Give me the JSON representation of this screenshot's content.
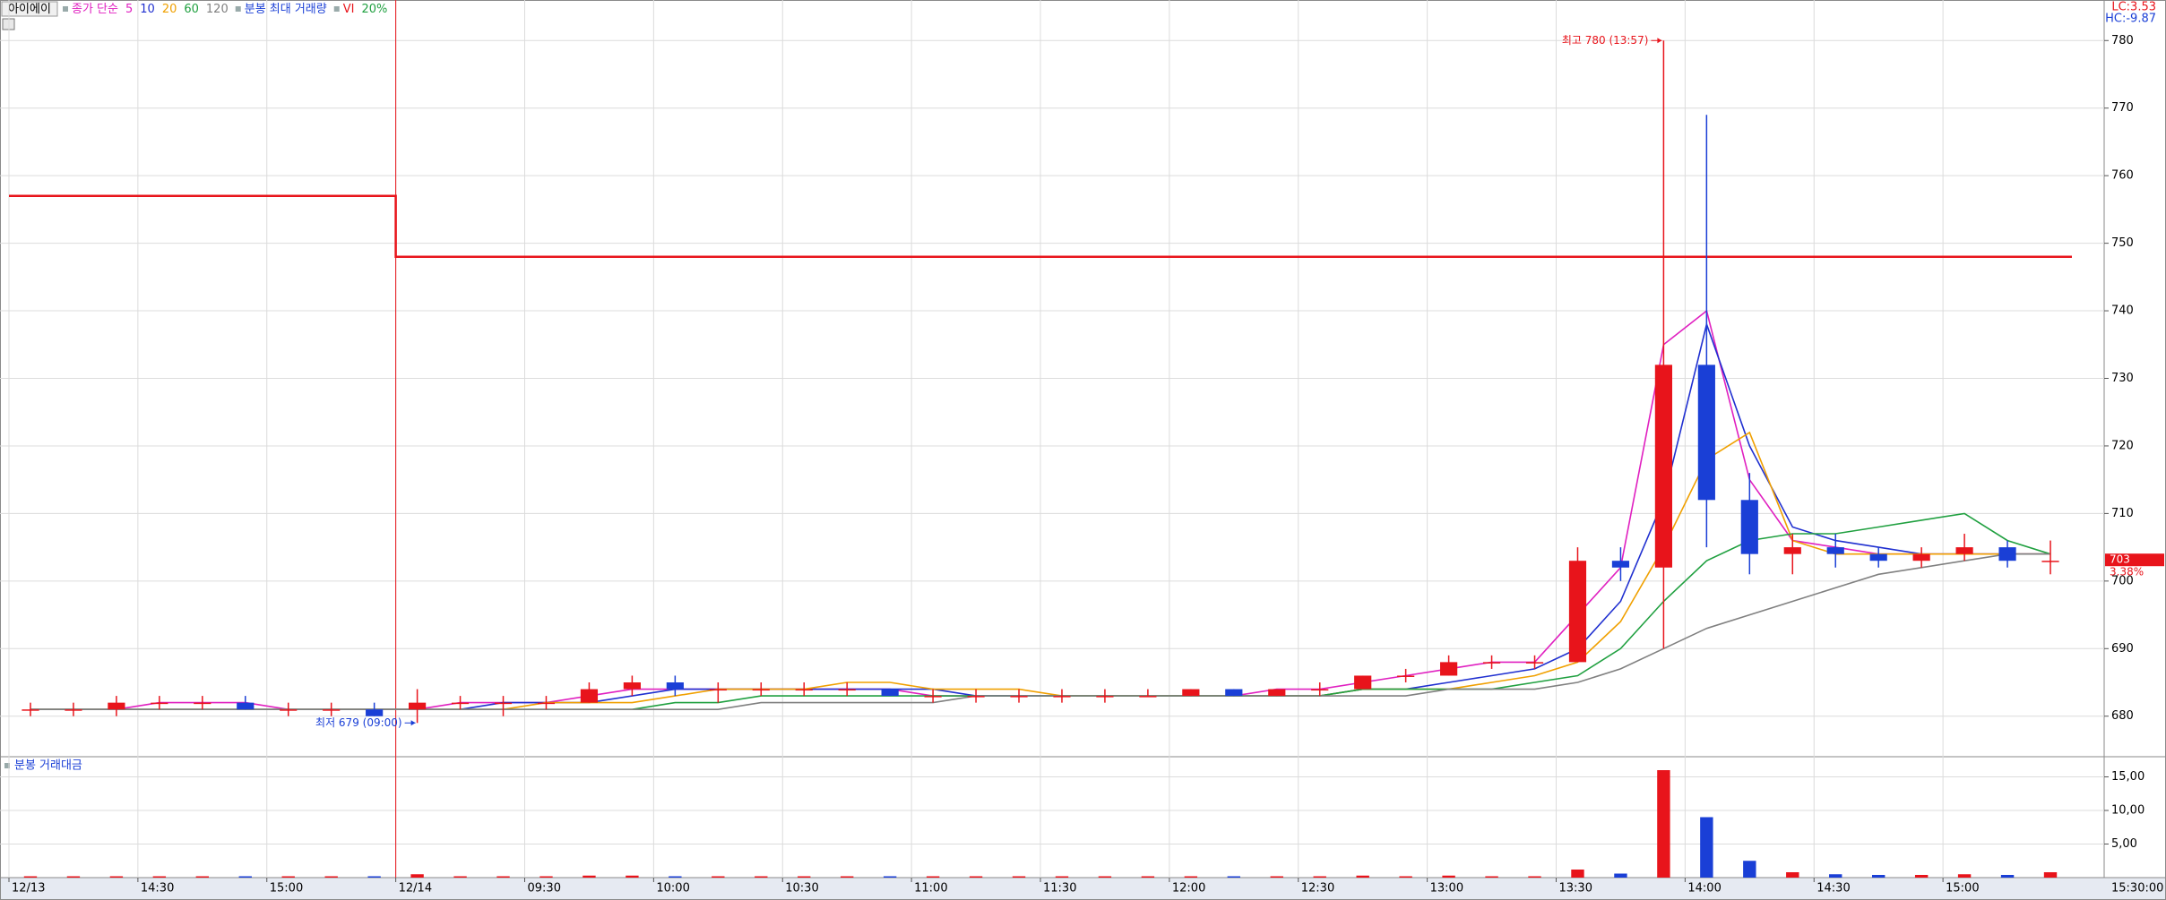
{
  "chart_data": [
    {
      "type": "candlestick",
      "name": "아이에이",
      "ma_label": "종가 단순",
      "volume_label": "분봉 최대 거래량",
      "vi_note": "20%",
      "x": [
        "12/13 14:00",
        "12/13 14:10",
        "12/13 14:20",
        "12/13 14:30",
        "12/13 14:40",
        "12/13 14:50",
        "12/13 15:00",
        "12/13 15:10",
        "12/13 15:20",
        "12/14 09:00",
        "12/14 09:10",
        "12/14 09:20",
        "12/14 09:30",
        "12/14 09:40",
        "12/14 09:50",
        "12/14 10:00",
        "12/14 10:10",
        "12/14 10:20",
        "12/14 10:30",
        "12/14 10:40",
        "12/14 10:50",
        "12/14 11:00",
        "12/14 11:10",
        "12/14 11:20",
        "12/14 11:30",
        "12/14 11:40",
        "12/14 11:50",
        "12/14 12:00",
        "12/14 12:10",
        "12/14 12:20",
        "12/14 12:30",
        "12/14 12:40",
        "12/14 12:50",
        "12/14 13:00",
        "12/14 13:10",
        "12/14 13:20",
        "12/14 13:30",
        "12/14 13:40",
        "12/14 13:50",
        "12/14 14:00",
        "12/14 14:10",
        "12/14 14:20",
        "12/14 14:30",
        "12/14 14:40",
        "12/14 14:50",
        "12/14 15:00",
        "12/14 15:10",
        "12/14 15:20"
      ],
      "open": [
        681,
        681,
        681,
        682,
        682,
        682,
        681,
        681,
        681,
        681,
        682,
        682,
        682,
        682,
        684,
        685,
        684,
        684,
        684,
        684,
        684,
        683,
        683,
        683,
        683,
        683,
        683,
        683,
        684,
        683,
        684,
        684,
        686,
        686,
        688,
        688,
        688,
        703,
        702,
        732,
        712,
        704,
        705,
        704,
        703,
        704,
        705,
        703
      ],
      "high": [
        682,
        682,
        683,
        683,
        683,
        683,
        682,
        682,
        682,
        684,
        683,
        683,
        683,
        685,
        686,
        686,
        685,
        685,
        685,
        685,
        684,
        684,
        684,
        684,
        684,
        684,
        684,
        684,
        684,
        684,
        685,
        686,
        687,
        689,
        689,
        689,
        705,
        705,
        780,
        769,
        716,
        707,
        707,
        705,
        705,
        707,
        706,
        706
      ],
      "low": [
        680,
        680,
        680,
        681,
        681,
        681,
        680,
        680,
        680,
        679,
        681,
        680,
        681,
        682,
        683,
        683,
        682,
        683,
        683,
        683,
        683,
        682,
        682,
        682,
        682,
        682,
        683,
        683,
        683,
        683,
        683,
        684,
        685,
        686,
        687,
        687,
        688,
        700,
        690,
        705,
        701,
        701,
        702,
        702,
        702,
        703,
        702,
        701
      ],
      "close": [
        681,
        681,
        682,
        682,
        682,
        681,
        681,
        681,
        680,
        682,
        682,
        682,
        682,
        684,
        685,
        684,
        684,
        684,
        684,
        684,
        683,
        683,
        683,
        683,
        683,
        683,
        683,
        684,
        683,
        684,
        684,
        686,
        686,
        688,
        688,
        688,
        703,
        702,
        732,
        712,
        704,
        705,
        704,
        703,
        704,
        705,
        703,
        703
      ],
      "up_color": "#e8141b",
      "down_color": "#1a3fd6",
      "series": [
        {
          "name": "5",
          "color": "#e020c0",
          "values": [
            681,
            681,
            681,
            682,
            682,
            682,
            681,
            681,
            681,
            681,
            682,
            682,
            682,
            683,
            684,
            684,
            684,
            684,
            684,
            684,
            684,
            683,
            683,
            683,
            683,
            683,
            683,
            683,
            683,
            684,
            684,
            685,
            686,
            687,
            688,
            688,
            695,
            702,
            735,
            740,
            715,
            706,
            705,
            704,
            704,
            704,
            704,
            704
          ]
        },
        {
          "name": "10",
          "color": "#2030d0",
          "values": [
            681,
            681,
            681,
            681,
            681,
            681,
            681,
            681,
            681,
            681,
            681,
            682,
            682,
            682,
            683,
            684,
            684,
            684,
            684,
            684,
            684,
            684,
            683,
            683,
            683,
            683,
            683,
            683,
            683,
            683,
            683,
            684,
            684,
            685,
            686,
            687,
            690,
            697,
            712,
            738,
            720,
            708,
            706,
            705,
            704,
            704,
            704,
            704
          ]
        },
        {
          "name": "20",
          "color": "#f0a000",
          "values": [
            681,
            681,
            681,
            681,
            681,
            681,
            681,
            681,
            681,
            681,
            681,
            681,
            682,
            682,
            682,
            683,
            684,
            684,
            684,
            685,
            685,
            684,
            684,
            684,
            683,
            683,
            683,
            683,
            683,
            683,
            683,
            684,
            684,
            684,
            685,
            686,
            688,
            694,
            705,
            718,
            722,
            706,
            704,
            704,
            704,
            704,
            704,
            704
          ]
        },
        {
          "name": "60",
          "color": "#20a040",
          "values": [
            681,
            681,
            681,
            681,
            681,
            681,
            681,
            681,
            681,
            681,
            681,
            681,
            681,
            681,
            681,
            682,
            682,
            683,
            683,
            683,
            683,
            683,
            683,
            683,
            683,
            683,
            683,
            683,
            683,
            683,
            683,
            684,
            684,
            684,
            684,
            685,
            686,
            690,
            697,
            703,
            706,
            707,
            707,
            708,
            709,
            710,
            706,
            704
          ]
        },
        {
          "name": "120",
          "color": "#808080",
          "values": [
            681,
            681,
            681,
            681,
            681,
            681,
            681,
            681,
            681,
            681,
            681,
            681,
            681,
            681,
            681,
            681,
            681,
            682,
            682,
            682,
            682,
            682,
            683,
            683,
            683,
            683,
            683,
            683,
            683,
            683,
            683,
            683,
            683,
            684,
            684,
            684,
            685,
            687,
            690,
            693,
            695,
            697,
            699,
            701,
            702,
            703,
            704,
            704
          ]
        },
        {
          "name": "VI",
          "color": "#e8141b",
          "values": [
            757,
            757,
            757,
            757,
            757,
            757,
            757,
            757,
            757,
            748,
            748,
            748,
            748,
            748,
            748,
            748,
            748,
            748,
            748,
            748,
            748,
            748,
            748,
            748,
            748,
            748,
            748,
            748,
            748,
            748,
            748,
            748,
            748,
            748,
            748,
            748,
            748,
            748,
            748,
            748,
            748,
            748,
            748,
            748,
            748,
            748,
            748,
            748
          ]
        }
      ],
      "ylim": [
        674,
        786
      ],
      "yticks": [
        680,
        690,
        700,
        710,
        720,
        730,
        740,
        750,
        760,
        770,
        780
      ],
      "xticks": [
        {
          "value": "12/13 14:00",
          "label": "12/13"
        },
        {
          "value": "12/13 14:30",
          "label": "14:30"
        },
        {
          "value": "12/13 15:00",
          "label": "15:00"
        },
        {
          "value": "12/14 09:00",
          "label": "12/14"
        },
        {
          "value": "12/14 09:30",
          "label": "09:30"
        },
        {
          "value": "12/14 10:00",
          "label": "10:00"
        },
        {
          "value": "12/14 10:30",
          "label": "10:30"
        },
        {
          "value": "12/14 11:00",
          "label": "11:00"
        },
        {
          "value": "12/14 11:30",
          "label": "11:30"
        },
        {
          "value": "12/14 12:00",
          "label": "12:00"
        },
        {
          "value": "12/14 12:30",
          "label": "12:30"
        },
        {
          "value": "12/14 13:00",
          "label": "13:00"
        },
        {
          "value": "12/14 13:30",
          "label": "13:30"
        },
        {
          "value": "12/14 14:00",
          "label": "14:00"
        },
        {
          "value": "12/14 14:30",
          "label": "14:30"
        },
        {
          "value": "12/14 15:00",
          "label": "15:00"
        }
      ],
      "annotations": [
        {
          "text": "최고 780 (13:57)",
          "x": "12/14 13:50",
          "value": 780
        },
        {
          "text": "최저 679 (09:00)",
          "x": "12/14 09:00",
          "value": 679
        }
      ],
      "last": 703,
      "last_change": "3.38%",
      "lc": "LC:3.53",
      "hc": "HC:-9.87",
      "clock": "15:30:00",
      "grid": true
    },
    {
      "type": "bar",
      "title": "분봉 거래대금",
      "values": [
        0.2,
        0.2,
        0.2,
        0.2,
        0.2,
        0.2,
        0.2,
        0.2,
        0.2,
        0.5,
        0.2,
        0.2,
        0.2,
        0.3,
        0.3,
        0.2,
        0.2,
        0.2,
        0.2,
        0.2,
        0.2,
        0.2,
        0.2,
        0.2,
        0.2,
        0.2,
        0.2,
        0.2,
        0.2,
        0.2,
        0.2,
        0.3,
        0.2,
        0.3,
        0.2,
        0.2,
        1.2,
        0.6,
        16,
        9,
        2.5,
        0.8,
        0.5,
        0.4,
        0.4,
        0.5,
        0.4,
        0.8
      ],
      "ylim": [
        0,
        18
      ],
      "yticks": [
        {
          "value": 5,
          "label": "5,00"
        },
        {
          "value": 10,
          "label": "10,00"
        },
        {
          "value": 15,
          "label": "15,00"
        }
      ],
      "grid": true
    }
  ]
}
